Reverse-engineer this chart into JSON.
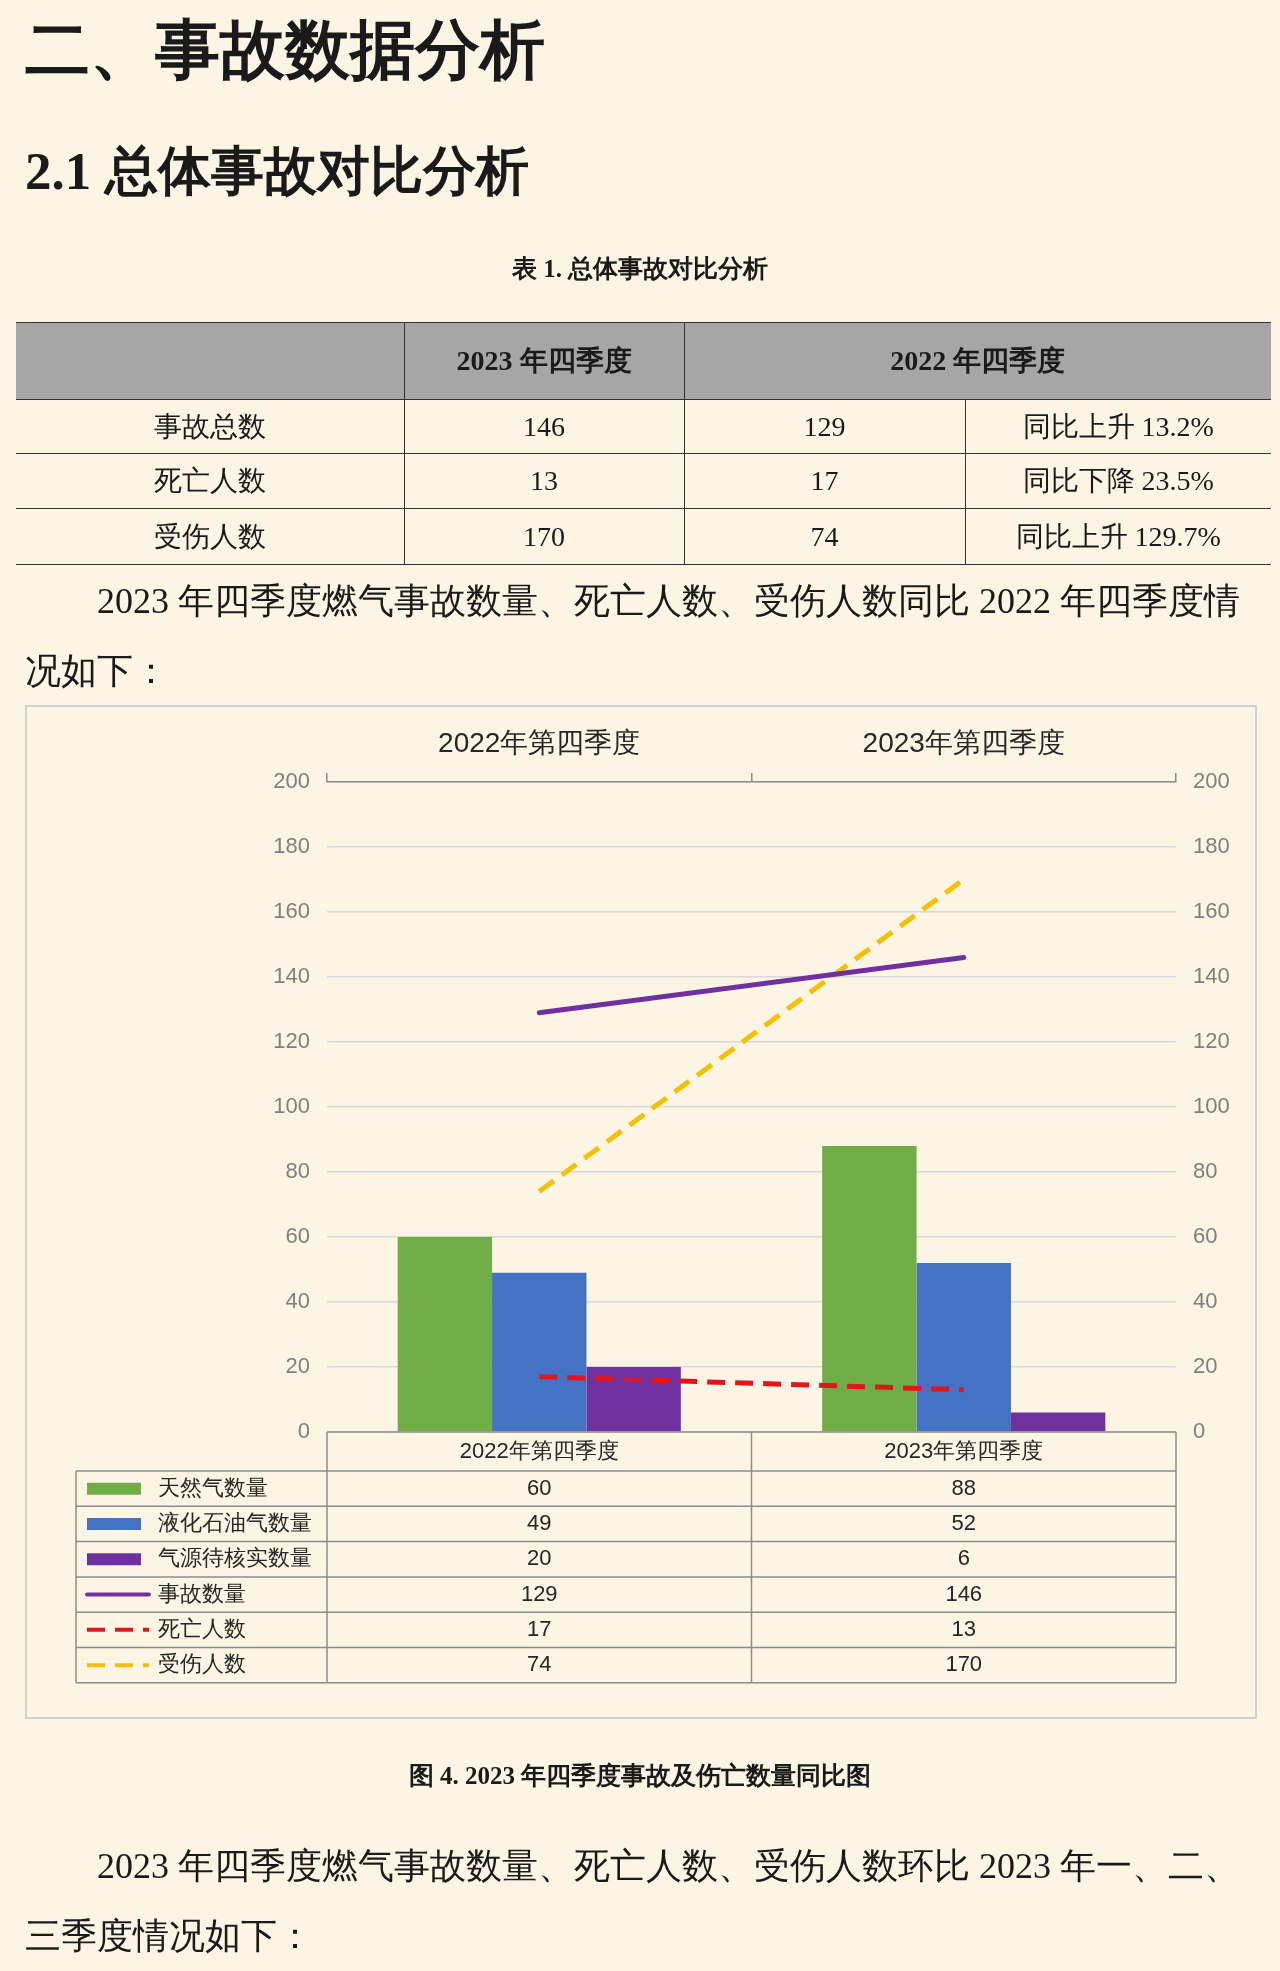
{
  "chart_data": {
    "type": "bar",
    "title": "图 4. 2023 年四季度事故及伤亡数量同比图",
    "categories": [
      "2022年第四季度",
      "2023年第四季度"
    ],
    "series": [
      {
        "name": "天然气数量",
        "color": "#70ad47",
        "values": [
          60,
          88
        ]
      },
      {
        "name": "液化石油气数量",
        "color": "#4472c4",
        "values": [
          49,
          52
        ]
      },
      {
        "name": "气源待核实数量",
        "color": "#7030a0",
        "values": [
          20,
          6
        ]
      },
      {
        "name": "事故数量",
        "type": "line",
        "color": "#7030a0",
        "line_style": "solid",
        "values": [
          129,
          146
        ]
      },
      {
        "name": "死亡人数",
        "type": "line",
        "color": "#e3151a",
        "line_style": "dashed",
        "values": [
          17,
          13
        ]
      },
      {
        "name": "受伤人数",
        "type": "line",
        "color": "#f5c000",
        "line_style": "dashed",
        "values": [
          74,
          170
        ]
      }
    ],
    "ylim": [
      0,
      200
    ],
    "yticks": [
      0,
      20,
      40,
      60,
      80,
      100,
      120,
      140,
      160,
      180,
      200
    ],
    "y2lim": [
      0,
      200
    ],
    "y2ticks": [
      0,
      20,
      40,
      60,
      80,
      100,
      120,
      140,
      160,
      180,
      200
    ],
    "grid": "y",
    "legend": "bottom",
    "data_labels": true,
    "marker": "none",
    "annotations": [
      "二、事故数据分析",
      "2.1 总体事故对比分析",
      "表 1. 总体事故对比分析",
      "2023 年四季度",
      "2022 年四季度",
      "事故总数",
      "146",
      "129",
      "同比上升 13.2%",
      "死亡人数",
      "13",
      "17",
      "同比下降 23.5%",
      "受伤人数",
      "170",
      "74",
      "同比上升 129.7%",
      "2023 年四季度燃气事故数量、死亡人数、受伤人数同比 2022 年四季度情况如下：",
      "2023 年四季度燃气事故数量、死亡人数、受伤人数环比 2023 年一、二、三季度情况如下："
    ]
  }
}
